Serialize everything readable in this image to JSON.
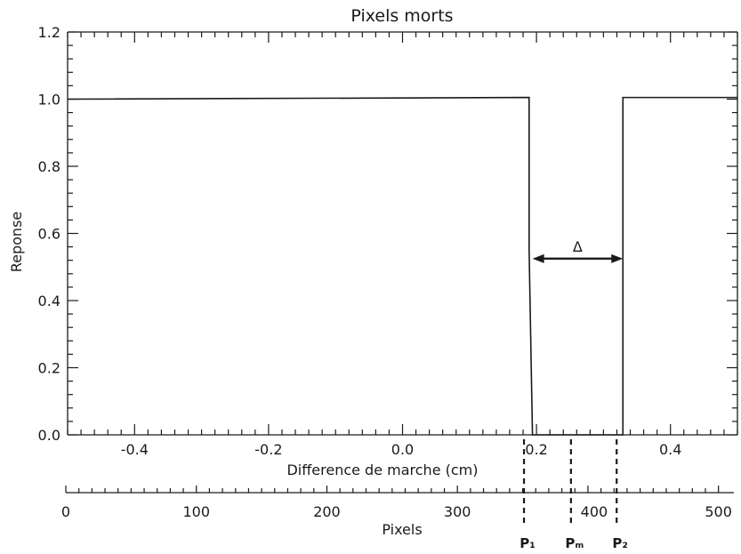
{
  "chart_data": {
    "type": "line",
    "title": "Pixels morts",
    "xlabel": "Difference de marche (cm)",
    "ylabel": "Reponse",
    "xlim": [
      -0.5,
      0.5
    ],
    "ylim": [
      0.0,
      1.2
    ],
    "x_ticks": [
      "-0.4",
      "-0.2",
      "0.0",
      "0.2",
      "0.4"
    ],
    "y_ticks": [
      "0.0",
      "0.2",
      "0.4",
      "0.6",
      "0.8",
      "1.0",
      "1.2"
    ],
    "series": [
      {
        "x": [
          -0.5,
          0.189,
          0.189,
          0.194,
          0.194,
          0.329,
          0.329,
          0.5
        ],
        "y": [
          1.0,
          1.005,
          0.55,
          0.0,
          0.0,
          0.0,
          1.005,
          1.005
        ]
      }
    ],
    "annotation": {
      "label": "Δ",
      "x_from": 0.194,
      "x_to": 0.329,
      "y": 0.525
    },
    "secondary_axis": {
      "label": "Pixels",
      "range": [
        0,
        505
      ],
      "ticks": [
        "0",
        "100",
        "200",
        "300",
        "400",
        "500"
      ],
      "markers": [
        {
          "label": "P₁",
          "pixel": 351
        },
        {
          "label": "Pₘ",
          "pixel": 387
        },
        {
          "label": "P₂",
          "pixel": 422
        }
      ]
    }
  }
}
